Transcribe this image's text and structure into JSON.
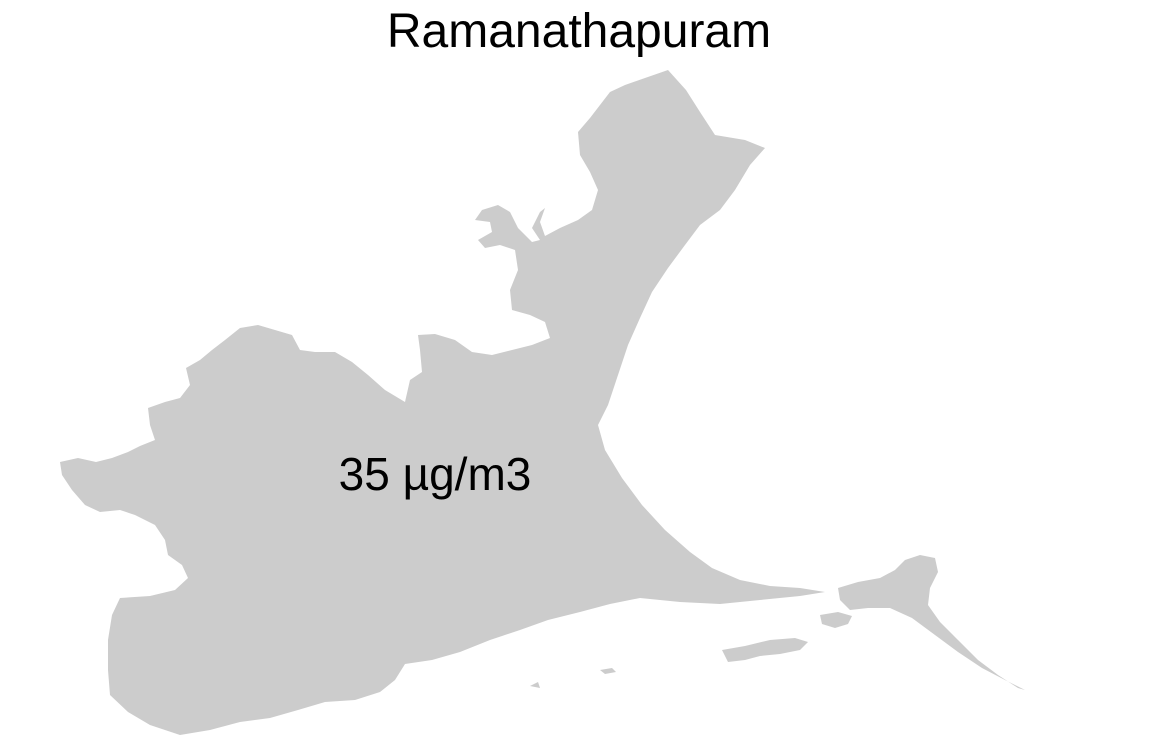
{
  "map": {
    "title": "Ramanathapuram",
    "value_label": "35 µg/m3",
    "region_fill": "#cccccc",
    "background": "#ffffff"
  }
}
